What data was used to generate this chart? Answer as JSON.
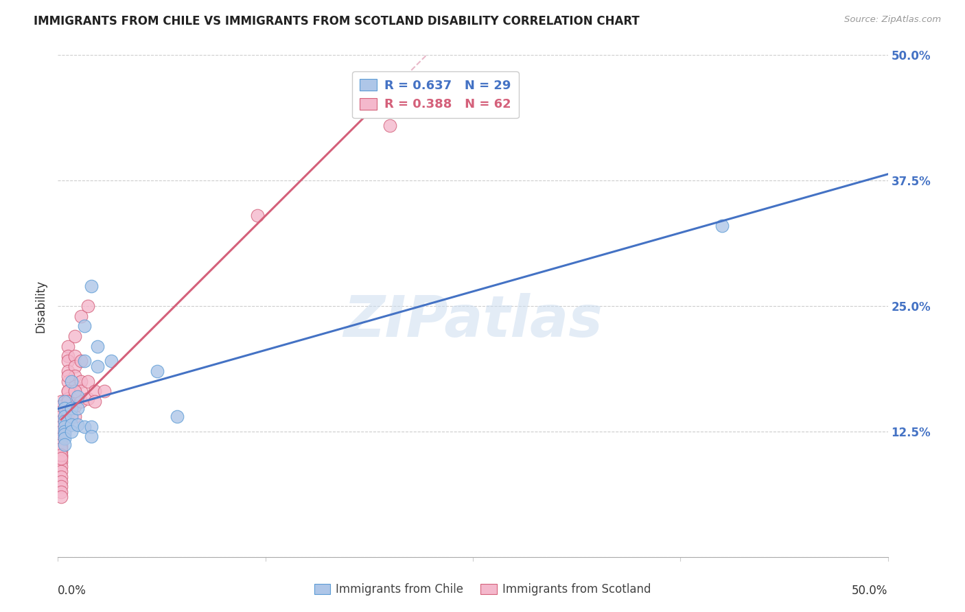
{
  "title": "IMMIGRANTS FROM CHILE VS IMMIGRANTS FROM SCOTLAND DISABILITY CORRELATION CHART",
  "source": "Source: ZipAtlas.com",
  "ylabel": "Disability",
  "xmin": 0.0,
  "xmax": 0.5,
  "ymin": 0.0,
  "ymax": 0.5,
  "yticks": [
    0.0,
    0.125,
    0.25,
    0.375,
    0.5
  ],
  "ytick_labels": [
    "",
    "12.5%",
    "25.0%",
    "37.5%",
    "50.0%"
  ],
  "watermark_text": "ZIPatlas",
  "chile_color": "#aec6e8",
  "chile_edge_color": "#5b9bd5",
  "scotland_color": "#f4b8cc",
  "scotland_edge_color": "#d4607a",
  "chile_R": 0.637,
  "chile_N": 29,
  "scotland_R": 0.388,
  "scotland_N": 62,
  "chile_line_color": "#4472c4",
  "scotland_line_color": "#d4607a",
  "scotland_dash_color": "#e8b8c8",
  "chile_scatter_x": [
    0.004,
    0.004,
    0.004,
    0.004,
    0.004,
    0.004,
    0.004,
    0.004,
    0.004,
    0.008,
    0.008,
    0.008,
    0.008,
    0.008,
    0.012,
    0.012,
    0.012,
    0.016,
    0.016,
    0.02,
    0.02,
    0.02,
    0.024,
    0.024,
    0.032,
    0.06,
    0.072,
    0.4,
    0.016
  ],
  "chile_scatter_y": [
    0.155,
    0.148,
    0.14,
    0.135,
    0.13,
    0.125,
    0.122,
    0.118,
    0.112,
    0.175,
    0.148,
    0.14,
    0.132,
    0.125,
    0.16,
    0.148,
    0.132,
    0.195,
    0.13,
    0.27,
    0.13,
    0.12,
    0.21,
    0.19,
    0.195,
    0.185,
    0.14,
    0.33,
    0.23
  ],
  "scotland_scatter_x": [
    0.002,
    0.002,
    0.002,
    0.002,
    0.002,
    0.002,
    0.002,
    0.002,
    0.002,
    0.002,
    0.002,
    0.002,
    0.002,
    0.002,
    0.002,
    0.002,
    0.002,
    0.002,
    0.002,
    0.002,
    0.002,
    0.002,
    0.002,
    0.002,
    0.002,
    0.002,
    0.002,
    0.006,
    0.006,
    0.006,
    0.006,
    0.006,
    0.006,
    0.006,
    0.006,
    0.006,
    0.006,
    0.01,
    0.01,
    0.01,
    0.01,
    0.01,
    0.01,
    0.01,
    0.01,
    0.014,
    0.014,
    0.014,
    0.014,
    0.014,
    0.018,
    0.018,
    0.018,
    0.022,
    0.022,
    0.028,
    0.12,
    0.2,
    0.006,
    0.006,
    0.006,
    0.01
  ],
  "scotland_scatter_y": [
    0.155,
    0.15,
    0.145,
    0.14,
    0.135,
    0.13,
    0.125,
    0.12,
    0.115,
    0.11,
    0.105,
    0.1,
    0.095,
    0.09,
    0.085,
    0.08,
    0.075,
    0.07,
    0.065,
    0.06,
    0.13,
    0.125,
    0.118,
    0.112,
    0.108,
    0.102,
    0.098,
    0.21,
    0.2,
    0.195,
    0.185,
    0.175,
    0.165,
    0.158,
    0.15,
    0.142,
    0.135,
    0.22,
    0.2,
    0.19,
    0.18,
    0.17,
    0.16,
    0.15,
    0.14,
    0.24,
    0.195,
    0.175,
    0.165,
    0.155,
    0.25,
    0.175,
    0.158,
    0.165,
    0.155,
    0.165,
    0.34,
    0.43,
    0.18,
    0.165,
    0.155,
    0.165
  ]
}
